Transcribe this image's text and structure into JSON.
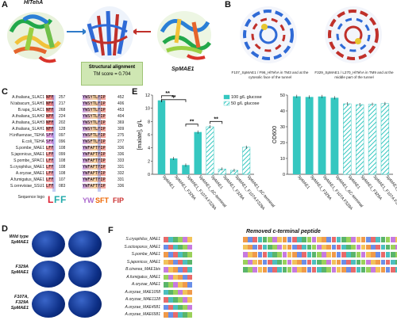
{
  "panel_labels": {
    "A": "A",
    "B": "B",
    "C": "C",
    "D": "D",
    "E": "E",
    "F": "F"
  },
  "panelA": {
    "left_label": "HlTehA",
    "right_label": "SpMAE1",
    "box_title": "Structural alignment",
    "tm_score": "TM score = 0.704"
  },
  "panelB": {
    "caption_left": "F107_SpMAE1 / F96_HlTehA in TM3 and at the cytosolic face of the tunnel",
    "caption_right": "F329_SpMAE1 / L270_HlTehA in TM9 and at the middle part of the tunnel"
  },
  "panelC": {
    "rows": [
      {
        "name": "A.thaliana_SLAC1",
        "left": "NFF",
        "lnum": "257",
        "right": "YWSYTLFIP",
        "rnum": "452"
      },
      {
        "name": "N.tabacum_SLAH1",
        "left": "NFF",
        "lnum": "217",
        "right": "YWSYTLFIP",
        "rnum": "406"
      },
      {
        "name": "B.rapa_SLAC1",
        "left": "NFF",
        "lnum": "268",
        "right": "YWSYTLFIP",
        "rnum": "453"
      },
      {
        "name": "A.thaliana_SLAH2",
        "left": "NFF",
        "lnum": "224",
        "right": "YWSYTLFIP",
        "rnum": "404"
      },
      {
        "name": "A.thaliana_SLAH3",
        "left": "NFF",
        "lnum": "202",
        "right": "YWSYTLFIP",
        "rnum": "369"
      },
      {
        "name": "A.thaliana_SLAH1",
        "left": "NFF",
        "lnum": "128",
        "right": "YWSYTLFIP",
        "rnum": "309"
      },
      {
        "name": "H.influenzae_TEHA",
        "left": "SFF",
        "lnum": "097",
        "right": "YWSFTLFIP",
        "rnum": "275"
      },
      {
        "name": "E.coli_TEHA",
        "left": "SFF",
        "lnum": "096",
        "right": "YWSFTLFIP",
        "rnum": "277"
      },
      {
        "name": "S.pombe_MAE1",
        "left": "LFF",
        "lnum": "108",
        "right": "YWFAFTFIP",
        "rnum": "336"
      },
      {
        "name": "S.japonicus_MAE1",
        "left": "LFF",
        "lnum": "099",
        "right": "YWFAFTFIP",
        "rnum": "336"
      },
      {
        "name": "S.pombe_SPAC1",
        "left": "LFF",
        "lnum": "108",
        "right": "YWFAFTFIP",
        "rnum": "333"
      },
      {
        "name": "S.cryophilus_MAE1",
        "left": "LFF",
        "lnum": "108",
        "right": "YWFAFTFIP",
        "rnum": "331"
      },
      {
        "name": "A.oryzae_MAE1",
        "left": "LFF",
        "lnum": "108",
        "right": "YWFAFTFIP",
        "rnum": "332"
      },
      {
        "name": "A.fumigatus_MAE1",
        "left": "LFF",
        "lnum": "107",
        "right": "YWFAFTFIP",
        "rnum": "331"
      },
      {
        "name": "S.cerevisiae_SSU1",
        "left": "LFF",
        "lnum": "083",
        "right": "YWFAFTFIP",
        "rnum": "336"
      }
    ],
    "logo_label": "Sequence logo"
  },
  "panelD": {
    "rows": [
      {
        "label": "Wild type SpMAE1"
      },
      {
        "label": "F329A SpMAE1"
      },
      {
        "label": "F107A, F329A SpMAE1"
      }
    ]
  },
  "panelE": {
    "chart_data": [
      {
        "type": "bar",
        "ylabel": "[malate], g/L",
        "ylim": [
          0,
          12
        ],
        "yticks": [
          0,
          2,
          4,
          6,
          8,
          10,
          12
        ],
        "legend": [
          {
            "name": "100 g/L glucose",
            "pattern": "solid"
          },
          {
            "name": "50 g/L glucose",
            "pattern": "hatched"
          }
        ],
        "categories": [
          "SpMAE1",
          "SpMAE1_F329A",
          "SpMAE1_F107A F329A",
          "SpMAE1_ΔC-terminal",
          "SpMAE1",
          "SpMAE1_F329A",
          "SpMAE1_F107A F329A",
          "SpMAE1_ΔC-terminal"
        ],
        "values": [
          11.2,
          2.4,
          1.4,
          6.4,
          7.2,
          0.8,
          0.6,
          4.1
        ],
        "patterns": [
          "solid",
          "solid",
          "solid",
          "solid",
          "hatched",
          "hatched",
          "hatched",
          "hatched"
        ],
        "significance": [
          "**",
          "**",
          "**",
          "**"
        ]
      },
      {
        "type": "bar",
        "ylabel": "OD600",
        "ylim": [
          0,
          50
        ],
        "yticks": [
          0,
          10,
          20,
          30,
          40,
          50
        ],
        "categories": [
          "SpMAE1",
          "SpMAE1_F329A",
          "SpMAE1_F107A F329A",
          "SpMAE1_ΔC-terminal",
          "SpMAE1",
          "SpMAE1_F329A",
          "SpMAE1_F107A F329A",
          "SpMAE1_ΔC-terminal"
        ],
        "values": [
          49.2,
          48.8,
          49.1,
          48.3,
          44.5,
          44.0,
          44.2,
          44.6
        ],
        "patterns": [
          "solid",
          "solid",
          "solid",
          "solid",
          "hatched",
          "hatched",
          "hatched",
          "hatched"
        ]
      }
    ]
  },
  "panelF": {
    "title": "Removed c-terminal peptide",
    "rows": [
      {
        "name": "S.cryophilus_MAE1"
      },
      {
        "name": "S.octosporus_MAE1"
      },
      {
        "name": "S.pombe_MAE1"
      },
      {
        "name": "S.japonicus_MAE1"
      },
      {
        "name": "B.cinerea_MAE1bis"
      },
      {
        "name": "A.fumigatus_MAE1"
      },
      {
        "name": "A.oryzae_MAE1"
      },
      {
        "name": "A.oryzae_MAE1058"
      },
      {
        "name": "A.oryzae_MAE1128"
      },
      {
        "name": "A.oryzae_MAE4581"
      },
      {
        "name": "A.oryzae_MAE6581"
      }
    ]
  },
  "colors": {
    "teal": "#35c7c0",
    "hatch": "#8fe0dc",
    "helix_blue": "#2f6ad6",
    "helix_red": "#c0302a",
    "panel_box_green": "#cfe7b3"
  }
}
